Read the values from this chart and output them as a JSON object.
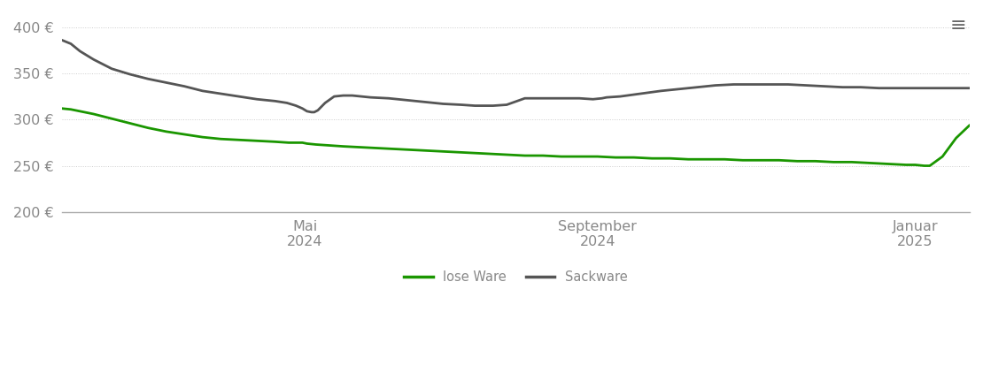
{
  "background_color": "#ffffff",
  "grid_color": "#cccccc",
  "grid_linestyle": "dotted",
  "ylim": [
    200,
    415
  ],
  "yticks": [
    200,
    250,
    300,
    350,
    400
  ],
  "ytick_labels": [
    "200 €",
    "250 €",
    "300 €",
    "350 €",
    "400 €"
  ],
  "legend_labels": [
    "lose Ware",
    "Sackware"
  ],
  "legend_colors": [
    "#1a9600",
    "#555555"
  ],
  "line_lose_ware": {
    "color": "#1a9600",
    "linewidth": 2.0,
    "x": [
      0.0,
      0.01,
      0.02,
      0.035,
      0.055,
      0.075,
      0.095,
      0.115,
      0.135,
      0.155,
      0.175,
      0.195,
      0.215,
      0.235,
      0.25,
      0.265,
      0.27,
      0.28,
      0.295,
      0.31,
      0.33,
      0.35,
      0.37,
      0.39,
      0.41,
      0.43,
      0.45,
      0.47,
      0.49,
      0.51,
      0.53,
      0.55,
      0.57,
      0.59,
      0.61,
      0.63,
      0.65,
      0.67,
      0.69,
      0.71,
      0.73,
      0.75,
      0.77,
      0.79,
      0.81,
      0.83,
      0.85,
      0.87,
      0.89,
      0.91,
      0.93,
      0.94,
      0.95,
      0.955,
      0.956,
      0.97,
      0.985,
      1.0
    ],
    "y": [
      312,
      311,
      309,
      306,
      301,
      296,
      291,
      287,
      284,
      281,
      279,
      278,
      277,
      276,
      275,
      275,
      274,
      273,
      272,
      271,
      270,
      269,
      268,
      267,
      266,
      265,
      264,
      263,
      262,
      261,
      261,
      260,
      260,
      260,
      259,
      259,
      258,
      258,
      257,
      257,
      257,
      256,
      256,
      256,
      255,
      255,
      254,
      254,
      253,
      252,
      251,
      251,
      250,
      250,
      250,
      260,
      280,
      294
    ]
  },
  "line_sackware": {
    "color": "#555555",
    "linewidth": 2.0,
    "x": [
      0.0,
      0.01,
      0.02,
      0.035,
      0.055,
      0.075,
      0.095,
      0.115,
      0.135,
      0.155,
      0.175,
      0.195,
      0.215,
      0.235,
      0.248,
      0.258,
      0.265,
      0.27,
      0.275,
      0.278,
      0.282,
      0.29,
      0.3,
      0.31,
      0.32,
      0.33,
      0.34,
      0.36,
      0.38,
      0.4,
      0.42,
      0.44,
      0.455,
      0.465,
      0.475,
      0.49,
      0.51,
      0.53,
      0.55,
      0.57,
      0.585,
      0.595,
      0.6,
      0.615,
      0.63,
      0.645,
      0.66,
      0.68,
      0.7,
      0.72,
      0.74,
      0.76,
      0.78,
      0.8,
      0.82,
      0.84,
      0.86,
      0.88,
      0.9,
      0.92,
      0.94,
      0.96,
      0.98,
      1.0
    ],
    "y": [
      386,
      382,
      374,
      365,
      355,
      349,
      344,
      340,
      336,
      331,
      328,
      325,
      322,
      320,
      318,
      315,
      312,
      309,
      308,
      308,
      310,
      318,
      325,
      326,
      326,
      325,
      324,
      323,
      321,
      319,
      317,
      316,
      315,
      315,
      315,
      316,
      323,
      323,
      323,
      323,
      322,
      323,
      324,
      325,
      327,
      329,
      331,
      333,
      335,
      337,
      338,
      338,
      338,
      338,
      337,
      336,
      335,
      335,
      334,
      334,
      334,
      334,
      334,
      334
    ]
  },
  "x_tick_positions": [
    0.268,
    0.59,
    0.94
  ],
  "x_tick_labels_line1": [
    "Mai",
    "September",
    "Januar"
  ],
  "x_tick_labels_line2": [
    "2024",
    "2024",
    "2025"
  ],
  "menu_icon_color": "#666666",
  "axis_bottom_color": "#aaaaaa",
  "tick_color": "#888888",
  "tick_fontsize": 11.5
}
